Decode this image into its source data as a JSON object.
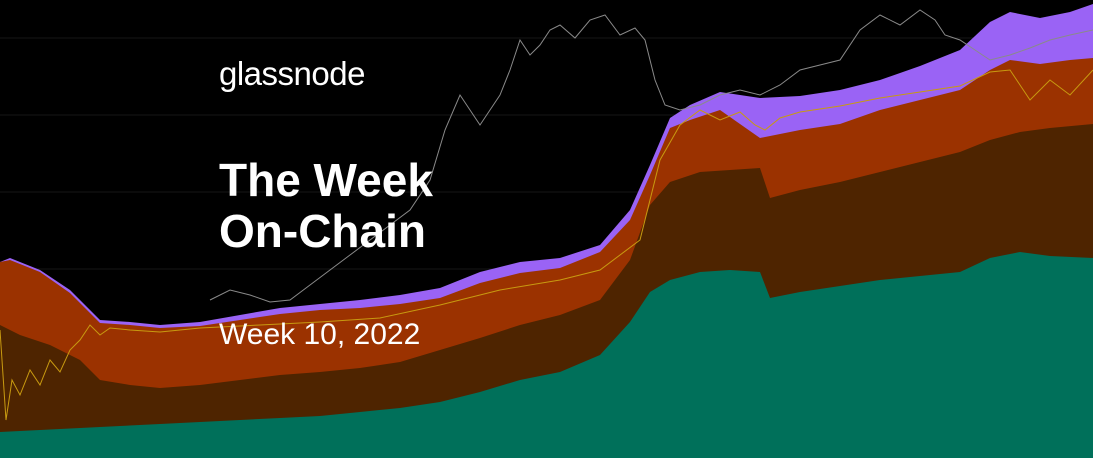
{
  "brand": "glassnode",
  "title_line_1": "The Week",
  "title_line_2": "On-Chain",
  "subtitle": "Week 10, 2022",
  "colors": {
    "background": "#000000",
    "purple_band": "#9a63f5",
    "orange_band": "#9b3200",
    "brown_band": "#4e2400",
    "green_band": "#00705a",
    "price_line": "#8a8a8a",
    "yellow_line": "#c89a10"
  }
}
